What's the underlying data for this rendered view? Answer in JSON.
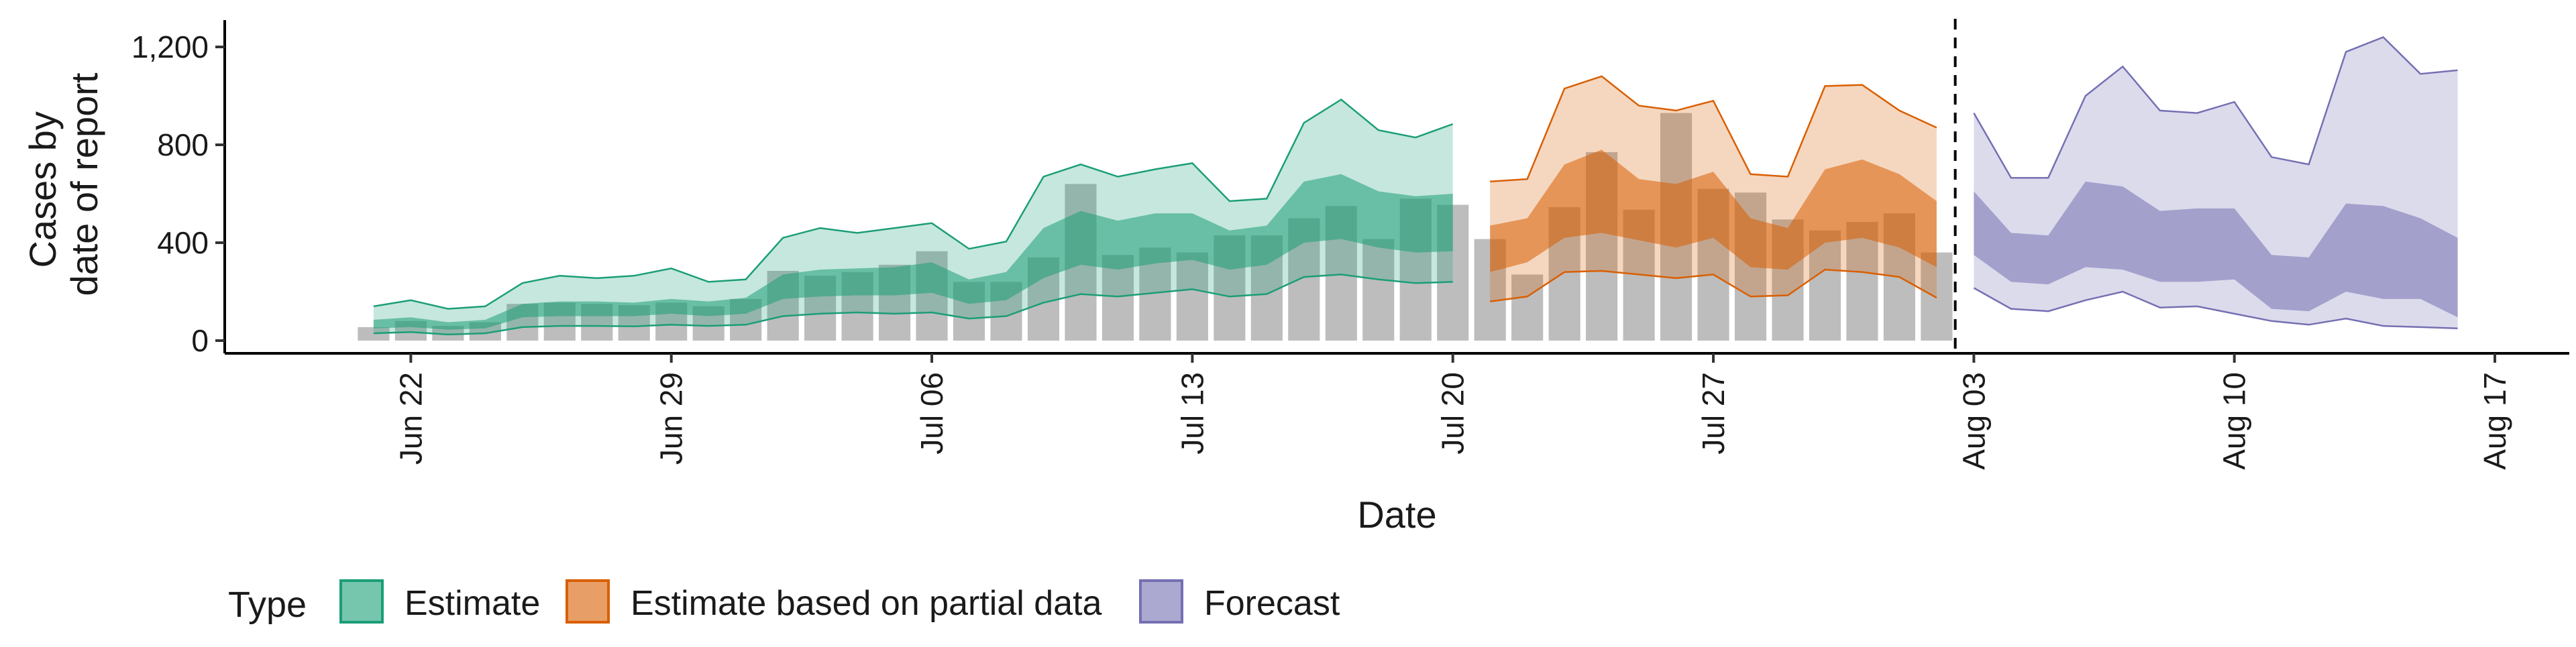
{
  "chart_data": {
    "type": "area",
    "xlabel": "Date",
    "ylabel": [
      "Cases by",
      "date of report"
    ],
    "ylim": [
      0,
      1300
    ],
    "y_ticks": [
      0,
      400,
      800,
      1200
    ],
    "y_tick_labels": [
      "0",
      "400",
      "800",
      "1,200"
    ],
    "x_ticks": [
      "2020-06-22",
      "2020-06-29",
      "2020-07-06",
      "2020-07-13",
      "2020-07-20",
      "2020-07-27",
      "2020-08-03",
      "2020-08-10",
      "2020-08-17"
    ],
    "x_tick_labels": [
      "Jun 22",
      "Jun 29",
      "Jul 06",
      "Jul 13",
      "Jul 20",
      "Jul 27",
      "Aug 03",
      "Aug 10",
      "Aug 17"
    ],
    "x_range": [
      "2020-06-17",
      "2020-08-19"
    ],
    "grid": false,
    "legend": {
      "title": "Type",
      "placement": "bottom",
      "entries": [
        "Estimate",
        "Estimate based on partial data",
        "Forecast"
      ]
    },
    "colors": {
      "estimate_fill": "#1b9e77",
      "estimate_line": "#1b9e77",
      "partial_fill": "#d95f02",
      "partial_line": "#d95f02",
      "forecast_fill": "#7570b3",
      "forecast_line": "#7570b3",
      "bars": "#bdbdbd"
    },
    "vline_date": "2020-08-02",
    "reported_cases": [
      [
        "2020-06-21",
        55
      ],
      [
        "2020-06-22",
        80
      ],
      [
        "2020-06-23",
        60
      ],
      [
        "2020-06-24",
        75
      ],
      [
        "2020-06-25",
        150
      ],
      [
        "2020-06-26",
        155
      ],
      [
        "2020-06-27",
        150
      ],
      [
        "2020-06-28",
        145
      ],
      [
        "2020-06-29",
        155
      ],
      [
        "2020-06-30",
        140
      ],
      [
        "2020-07-01",
        170
      ],
      [
        "2020-07-02",
        285
      ],
      [
        "2020-07-03",
        265
      ],
      [
        "2020-07-04",
        280
      ],
      [
        "2020-07-05",
        310
      ],
      [
        "2020-07-06",
        365
      ],
      [
        "2020-07-07",
        240
      ],
      [
        "2020-07-08",
        240
      ],
      [
        "2020-07-09",
        340
      ],
      [
        "2020-07-10",
        640
      ],
      [
        "2020-07-11",
        350
      ],
      [
        "2020-07-12",
        380
      ],
      [
        "2020-07-13",
        360
      ],
      [
        "2020-07-14",
        430
      ],
      [
        "2020-07-15",
        430
      ],
      [
        "2020-07-16",
        500
      ],
      [
        "2020-07-17",
        550
      ],
      [
        "2020-07-18",
        415
      ],
      [
        "2020-07-19",
        580
      ],
      [
        "2020-07-20",
        555
      ],
      [
        "2020-07-21",
        415
      ],
      [
        "2020-07-22",
        270
      ],
      [
        "2020-07-23",
        545
      ],
      [
        "2020-07-24",
        770
      ],
      [
        "2020-07-25",
        535
      ],
      [
        "2020-07-26",
        930
      ],
      [
        "2020-07-27",
        620
      ],
      [
        "2020-07-28",
        605
      ],
      [
        "2020-07-29",
        495
      ],
      [
        "2020-07-30",
        450
      ],
      [
        "2020-07-31",
        485
      ],
      [
        "2020-08-01",
        520
      ],
      [
        "2020-08-02",
        360
      ]
    ],
    "series": [
      {
        "name": "Estimate",
        "x": [
          "2020-06-21",
          "2020-06-22",
          "2020-06-23",
          "2020-06-24",
          "2020-06-25",
          "2020-06-26",
          "2020-06-27",
          "2020-06-28",
          "2020-06-29",
          "2020-06-30",
          "2020-07-01",
          "2020-07-02",
          "2020-07-03",
          "2020-07-04",
          "2020-07-05",
          "2020-07-06",
          "2020-07-07",
          "2020-07-08",
          "2020-07-09",
          "2020-07-10",
          "2020-07-11",
          "2020-07-12",
          "2020-07-13",
          "2020-07-14",
          "2020-07-15",
          "2020-07-16",
          "2020-07-17",
          "2020-07-18",
          "2020-07-19",
          "2020-07-20"
        ],
        "lower90": [
          30,
          35,
          25,
          30,
          55,
          60,
          60,
          58,
          65,
          60,
          65,
          100,
          110,
          115,
          110,
          115,
          90,
          100,
          155,
          190,
          180,
          195,
          210,
          180,
          190,
          260,
          270,
          250,
          235,
          240
        ],
        "lower50": [
          50,
          55,
          45,
          50,
          95,
          100,
          100,
          100,
          110,
          100,
          110,
          170,
          180,
          185,
          185,
          195,
          150,
          165,
          255,
          310,
          290,
          315,
          330,
          290,
          310,
          400,
          415,
          380,
          360,
          365
        ],
        "upper50": [
          85,
          95,
          75,
          85,
          150,
          160,
          160,
          155,
          170,
          160,
          175,
          270,
          290,
          295,
          300,
          320,
          250,
          280,
          460,
          530,
          490,
          520,
          520,
          450,
          470,
          650,
          680,
          610,
          590,
          600
        ],
        "upper90": [
          140,
          165,
          130,
          140,
          235,
          265,
          255,
          265,
          295,
          240,
          250,
          420,
          460,
          440,
          460,
          480,
          375,
          405,
          670,
          720,
          670,
          700,
          725,
          570,
          580,
          890,
          985,
          860,
          830,
          885
        ]
      },
      {
        "name": "Estimate based on partial data",
        "x": [
          "2020-07-21",
          "2020-07-22",
          "2020-07-23",
          "2020-07-24",
          "2020-07-25",
          "2020-07-26",
          "2020-07-27",
          "2020-07-28",
          "2020-07-29",
          "2020-07-30",
          "2020-07-31",
          "2020-08-01",
          "2020-08-02"
        ],
        "lower90": [
          160,
          180,
          280,
          285,
          270,
          255,
          270,
          180,
          185,
          290,
          280,
          260,
          175
        ],
        "lower50": [
          280,
          320,
          420,
          440,
          410,
          380,
          420,
          300,
          290,
          400,
          420,
          380,
          300
        ],
        "upper50": [
          470,
          500,
          720,
          780,
          660,
          640,
          690,
          500,
          460,
          700,
          740,
          680,
          570
        ],
        "upper90": [
          650,
          660,
          1030,
          1080,
          960,
          940,
          980,
          680,
          670,
          1040,
          1045,
          940,
          870
        ]
      },
      {
        "name": "Forecast",
        "x": [
          "2020-08-03",
          "2020-08-04",
          "2020-08-05",
          "2020-08-06",
          "2020-08-07",
          "2020-08-08",
          "2020-08-09",
          "2020-08-10",
          "2020-08-11",
          "2020-08-12",
          "2020-08-13",
          "2020-08-14",
          "2020-08-15",
          "2020-08-16"
        ],
        "lower90": [
          215,
          130,
          120,
          165,
          200,
          135,
          140,
          110,
          80,
          65,
          90,
          60,
          55,
          50
        ],
        "lower50": [
          350,
          240,
          230,
          300,
          290,
          240,
          240,
          250,
          130,
          120,
          200,
          170,
          170,
          95
        ],
        "upper50": [
          610,
          440,
          430,
          650,
          630,
          530,
          540,
          540,
          350,
          340,
          560,
          550,
          500,
          420
        ],
        "upper90": [
          930,
          665,
          665,
          1000,
          1120,
          940,
          930,
          975,
          750,
          720,
          1180,
          1240,
          1090,
          1105
        ]
      }
    ]
  }
}
